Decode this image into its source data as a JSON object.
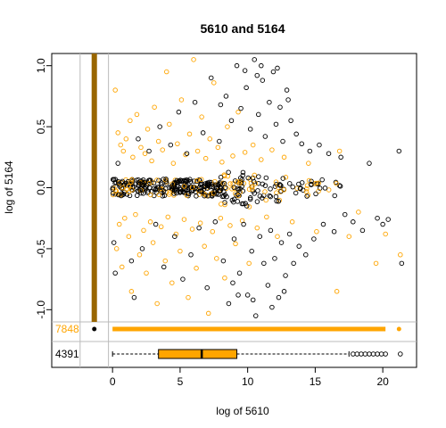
{
  "chart_data": {
    "type": "scatter",
    "title": "5610  and 5164",
    "xlabel": "log of 5610",
    "ylabel": "log of 5164",
    "xlim": [
      -4.5,
      22.5
    ],
    "ylim": [
      -1.1,
      1.1
    ],
    "x_ticks": [
      0,
      5,
      10,
      15,
      20
    ],
    "y_ticks": [
      -1.0,
      -0.5,
      0.0,
      0.5,
      1.0
    ],
    "x_tick_labels": [
      "0",
      "5",
      "10",
      "15",
      "20"
    ],
    "y_tick_labels": [
      "-1.0",
      "-0.5",
      "0.0",
      "0.5",
      "1.0"
    ],
    "grid": false,
    "series": [
      {
        "color": "#ffa500",
        "marker": "open-circle",
        "count_label": "7848",
        "points": [
          [
            0.2,
            0.8
          ],
          [
            0.4,
            0.45
          ],
          [
            0.6,
            0.35
          ],
          [
            0.8,
            0.3
          ],
          [
            1.0,
            0.4
          ],
          [
            1.3,
            0.55
          ],
          [
            1.5,
            0.25
          ],
          [
            1.8,
            0.6
          ],
          [
            2.1,
            0.33
          ],
          [
            2.4,
            0.28
          ],
          [
            2.6,
            0.48
          ],
          [
            2.9,
            0.22
          ],
          [
            3.1,
            0.66
          ],
          [
            3.4,
            0.38
          ],
          [
            3.7,
            0.31
          ],
          [
            4.0,
            0.95
          ],
          [
            4.2,
            0.52
          ],
          [
            4.5,
            0.2
          ],
          [
            4.8,
            0.36
          ],
          [
            5.1,
            0.72
          ],
          [
            5.4,
            0.27
          ],
          [
            5.7,
            0.44
          ],
          [
            6.0,
            1.05
          ],
          [
            6.3,
            0.3
          ],
          [
            6.6,
            0.58
          ],
          [
            6.9,
            0.24
          ],
          [
            7.2,
            0.4
          ],
          [
            7.5,
            0.86
          ],
          [
            7.8,
            0.33
          ],
          [
            8.1,
            0.21
          ],
          [
            8.5,
            0.5
          ],
          [
            8.9,
            0.26
          ],
          [
            9.3,
            0.62
          ],
          [
            9.8,
            0.29
          ],
          [
            10.4,
            0.35
          ],
          [
            11.0,
            0.23
          ],
          [
            11.8,
            0.31
          ],
          [
            12.7,
            0.25
          ],
          [
            14.5,
            0.2
          ],
          [
            16.8,
            0.3
          ],
          [
            0.3,
            -0.5
          ],
          [
            0.5,
            -0.3
          ],
          [
            0.7,
            -0.65
          ],
          [
            0.9,
            -0.25
          ],
          [
            1.2,
            -0.4
          ],
          [
            1.4,
            -0.85
          ],
          [
            1.7,
            -0.22
          ],
          [
            2.0,
            -0.55
          ],
          [
            2.3,
            -0.35
          ],
          [
            2.5,
            -0.7
          ],
          [
            2.8,
            -0.28
          ],
          [
            3.0,
            -0.45
          ],
          [
            3.3,
            -0.95
          ],
          [
            3.6,
            -0.32
          ],
          [
            3.9,
            -0.6
          ],
          [
            4.1,
            -0.24
          ],
          [
            4.4,
            -0.78
          ],
          [
            4.7,
            -0.38
          ],
          [
            5.0,
            -0.52
          ],
          [
            5.3,
            -0.26
          ],
          [
            5.6,
            -0.9
          ],
          [
            5.9,
            -0.34
          ],
          [
            6.2,
            -0.66
          ],
          [
            6.5,
            -0.29
          ],
          [
            6.8,
            -0.48
          ],
          [
            7.1,
            -1.03
          ],
          [
            7.4,
            -0.36
          ],
          [
            7.7,
            -0.58
          ],
          [
            8.0,
            -0.25
          ],
          [
            8.3,
            -0.74
          ],
          [
            8.7,
            -0.31
          ],
          [
            9.1,
            -0.46
          ],
          [
            9.6,
            -0.27
          ],
          [
            10.1,
            -0.62
          ],
          [
            10.7,
            -0.33
          ],
          [
            11.4,
            -0.24
          ],
          [
            12.2,
            -0.4
          ],
          [
            13.3,
            -0.28
          ],
          [
            15.1,
            -0.36
          ],
          [
            16.6,
            -0.85
          ],
          [
            17.5,
            -0.4
          ],
          [
            18.2,
            -0.2
          ],
          [
            19.5,
            -0.62
          ],
          [
            20.2,
            -0.38
          ],
          [
            21.3,
            -0.55
          ]
        ]
      },
      {
        "color": "#000000",
        "marker": "open-circle",
        "count_label": "4391",
        "points": [
          [
            0.1,
            -0.45
          ],
          [
            0.2,
            -0.7
          ],
          [
            0.4,
            0.2
          ],
          [
            1.4,
            -0.6
          ],
          [
            1.6,
            -0.9
          ],
          [
            1.9,
            0.4
          ],
          [
            2.2,
            -0.5
          ],
          [
            2.7,
            0.3
          ],
          [
            3.2,
            -0.3
          ],
          [
            3.5,
            0.5
          ],
          [
            3.8,
            -0.65
          ],
          [
            4.3,
            0.35
          ],
          [
            4.6,
            -0.4
          ],
          [
            4.9,
            0.62
          ],
          [
            5.2,
            -0.75
          ],
          [
            5.5,
            0.28
          ],
          [
            5.8,
            -0.55
          ],
          [
            6.1,
            0.7
          ],
          [
            6.4,
            -0.33
          ],
          [
            6.7,
            0.45
          ],
          [
            7.0,
            -0.82
          ],
          [
            7.3,
            0.9
          ],
          [
            7.6,
            -0.28
          ],
          [
            7.9,
            0.38
          ],
          [
            8.2,
            -0.6
          ],
          [
            8.4,
            0.75
          ],
          [
            8.6,
            -0.95
          ],
          [
            8.8,
            0.55
          ],
          [
            9.0,
            -0.42
          ],
          [
            9.2,
            1.0
          ],
          [
            9.4,
            -0.7
          ],
          [
            9.5,
            0.65
          ],
          [
            9.7,
            -0.3
          ],
          [
            9.9,
            0.82
          ],
          [
            10.0,
            -0.88
          ],
          [
            10.2,
            0.48
          ],
          [
            10.3,
            -0.52
          ],
          [
            10.5,
            1.05
          ],
          [
            10.6,
            -1.05
          ],
          [
            10.8,
            0.6
          ],
          [
            10.9,
            -0.4
          ],
          [
            11.1,
            0.88
          ],
          [
            11.2,
            -0.62
          ],
          [
            11.3,
            0.42
          ],
          [
            11.5,
            -0.8
          ],
          [
            11.6,
            0.7
          ],
          [
            11.7,
            -0.35
          ],
          [
            11.9,
            0.95
          ],
          [
            12.0,
            -0.58
          ],
          [
            12.1,
            0.52
          ],
          [
            12.3,
            -0.9
          ],
          [
            12.4,
            0.66
          ],
          [
            12.5,
            -0.45
          ],
          [
            12.6,
            0.38
          ],
          [
            12.8,
            -0.72
          ],
          [
            12.9,
            0.8
          ],
          [
            13.1,
            -0.38
          ],
          [
            13.2,
            0.55
          ],
          [
            13.4,
            -0.62
          ],
          [
            13.6,
            0.44
          ],
          [
            13.8,
            -0.48
          ],
          [
            14.0,
            0.36
          ],
          [
            14.3,
            -0.55
          ],
          [
            14.6,
            0.3
          ],
          [
            14.9,
            -0.42
          ],
          [
            15.3,
            0.35
          ],
          [
            15.6,
            -0.3
          ],
          [
            16.0,
            0.28
          ],
          [
            16.4,
            -0.36
          ],
          [
            16.9,
            0.25
          ],
          [
            17.2,
            -0.22
          ],
          [
            17.8,
            -0.28
          ],
          [
            18.5,
            -0.35
          ],
          [
            19.0,
            0.2
          ],
          [
            19.6,
            -0.25
          ],
          [
            20.0,
            -0.3
          ],
          [
            20.4,
            -0.26
          ],
          [
            21.2,
            0.3
          ],
          [
            21.4,
            -0.62
          ],
          [
            11.0,
            1.0
          ],
          [
            12.2,
            0.98
          ],
          [
            9.8,
            0.96
          ],
          [
            10.7,
            0.92
          ],
          [
            11.8,
            -0.98
          ],
          [
            10.4,
            -0.92
          ],
          [
            9.3,
            -0.88
          ],
          [
            12.7,
            -0.85
          ],
          [
            13.0,
            0.72
          ],
          [
            8.9,
            -0.78
          ],
          [
            8.0,
            0.68
          ]
        ]
      }
    ],
    "dense_band": {
      "color": "#000000",
      "x_start": 0,
      "x_end": 17.8,
      "y_center": 0.0,
      "y_spread": 0.07
    },
    "zero_strip": {
      "color": "#996600",
      "x": -1.35,
      "y_min": -1.1,
      "y_max": 1.1
    },
    "marginal_row": {
      "label": "7848",
      "color": "#ffa500",
      "x_start": 0,
      "x_end": 20.2,
      "outlier_x": 21.2,
      "zero_point_color": "#000000"
    },
    "boxplot": {
      "label": "4391",
      "min": 0,
      "q1": 3.4,
      "median": 6.6,
      "q3": 9.2,
      "max": 17.5,
      "fill": "#ffa500",
      "outliers": [
        17.8,
        18.1,
        18.4,
        18.7,
        19.0,
        19.3,
        19.6,
        19.9,
        20.2,
        21.3
      ]
    }
  }
}
